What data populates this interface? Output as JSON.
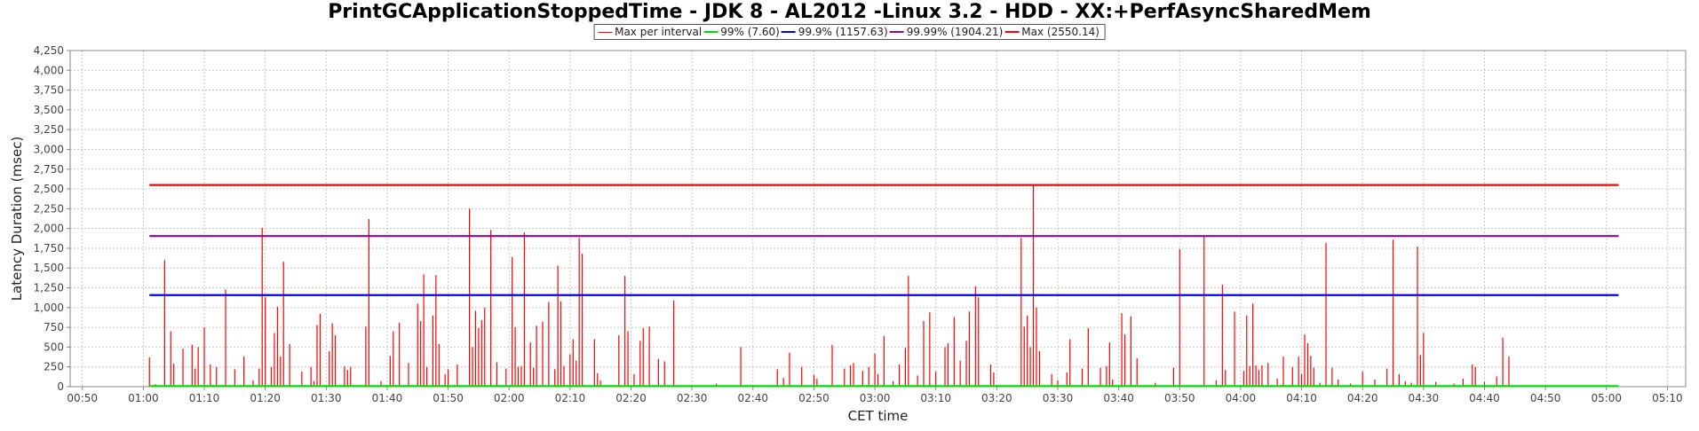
{
  "chart_data": {
    "type": "line",
    "title": "PrintGCApplicationStoppedTime - JDK 8 - AL2012 -Linux 3.2 - HDD - XX:+PerfAsyncSharedMem",
    "xlabel": "CET time",
    "ylabel": "Latency Duration (msec)",
    "ylim": [
      0,
      4250
    ],
    "yticks": [
      0,
      250,
      500,
      750,
      1000,
      1250,
      1500,
      1750,
      2000,
      2250,
      2500,
      2750,
      3000,
      3250,
      3500,
      3750,
      4000,
      4250
    ],
    "ytick_labels": [
      "0",
      "250",
      "500",
      "750",
      "1,000",
      "1,250",
      "1,500",
      "1,750",
      "2,000",
      "2,250",
      "2,500",
      "2,750",
      "3,000",
      "3,250",
      "3,500",
      "3,750",
      "4,000",
      "4,250"
    ],
    "xlim": [
      "00:48",
      "05:13"
    ],
    "xtick_labels": [
      "00:50",
      "01:00",
      "01:10",
      "01:20",
      "01:30",
      "01:40",
      "01:50",
      "02:00",
      "02:10",
      "02:20",
      "02:30",
      "02:40",
      "02:50",
      "03:00",
      "03:10",
      "03:20",
      "03:30",
      "03:40",
      "03:50",
      "04:00",
      "04:10",
      "04:20",
      "04:30",
      "04:40",
      "04:50",
      "05:00",
      "05:10"
    ],
    "grid": true,
    "legend_position": "top-center",
    "legend": [
      {
        "label": "Max per interval",
        "color": "#ff0000"
      },
      {
        "label": "99% (7.60)",
        "color": "#00dd00"
      },
      {
        "label": "99.9% (1157.63)",
        "color": "#0000ff"
      },
      {
        "label": "99.99% (1904.21)",
        "color": "#990099"
      },
      {
        "label": "Max (2550.14)",
        "color": "#ff0000"
      }
    ],
    "series": [
      {
        "name": "Max per interval",
        "color": "#ff0000",
        "type": "spikes",
        "points": [
          [
            "01:01:00",
            370
          ],
          [
            "01:02:00",
            30
          ],
          [
            "01:03:30",
            1600
          ],
          [
            "01:04:30",
            700
          ],
          [
            "01:05:00",
            290
          ],
          [
            "01:06:30",
            480
          ],
          [
            "01:08:00",
            530
          ],
          [
            "01:08:30",
            230
          ],
          [
            "01:09:00",
            500
          ],
          [
            "01:10:00",
            750
          ],
          [
            "01:11:00",
            280
          ],
          [
            "01:12:00",
            250
          ],
          [
            "01:13:30",
            1230
          ],
          [
            "01:15:00",
            220
          ],
          [
            "01:16:30",
            380
          ],
          [
            "01:18:00",
            80
          ],
          [
            "01:19:00",
            230
          ],
          [
            "01:19:30",
            2010
          ],
          [
            "01:20:00",
            1130
          ],
          [
            "01:21:00",
            250
          ],
          [
            "01:21:30",
            680
          ],
          [
            "01:22:00",
            1010
          ],
          [
            "01:22:30",
            380
          ],
          [
            "01:23:00",
            1580
          ],
          [
            "01:24:00",
            540
          ],
          [
            "01:26:00",
            190
          ],
          [
            "01:27:30",
            250
          ],
          [
            "01:28:00",
            70
          ],
          [
            "01:28:30",
            780
          ],
          [
            "01:29:00",
            920
          ],
          [
            "01:30:30",
            450
          ],
          [
            "01:31:00",
            800
          ],
          [
            "01:31:30",
            650
          ],
          [
            "01:33:00",
            260
          ],
          [
            "01:33:30",
            210
          ],
          [
            "01:34:00",
            250
          ],
          [
            "01:36:30",
            760
          ],
          [
            "01:37:00",
            2120
          ],
          [
            "01:39:00",
            70
          ],
          [
            "01:40:30",
            390
          ],
          [
            "01:41:00",
            700
          ],
          [
            "01:42:00",
            810
          ],
          [
            "01:43:30",
            300
          ],
          [
            "01:45:00",
            1050
          ],
          [
            "01:45:30",
            830
          ],
          [
            "01:46:00",
            1420
          ],
          [
            "01:46:30",
            250
          ],
          [
            "01:47:30",
            900
          ],
          [
            "01:48:00",
            1410
          ],
          [
            "01:48:30",
            540
          ],
          [
            "01:49:30",
            160
          ],
          [
            "01:50:00",
            220
          ],
          [
            "01:51:30",
            280
          ],
          [
            "01:53:30",
            2250
          ],
          [
            "01:54:00",
            500
          ],
          [
            "01:54:30",
            960
          ],
          [
            "01:55:00",
            740
          ],
          [
            "01:55:30",
            840
          ],
          [
            "01:56:00",
            1000
          ],
          [
            "01:57:00",
            1980
          ],
          [
            "01:58:00",
            310
          ],
          [
            "01:59:30",
            230
          ],
          [
            "02:00:30",
            1640
          ],
          [
            "02:01:00",
            750
          ],
          [
            "02:01:30",
            250
          ],
          [
            "02:02:00",
            260
          ],
          [
            "02:02:30",
            1950
          ],
          [
            "02:03:30",
            560
          ],
          [
            "02:04:00",
            240
          ],
          [
            "02:04:30",
            770
          ],
          [
            "02:05:30",
            820
          ],
          [
            "02:06:30",
            1070
          ],
          [
            "02:07:30",
            220
          ],
          [
            "02:08:00",
            1530
          ],
          [
            "02:08:30",
            1080
          ],
          [
            "02:09:00",
            260
          ],
          [
            "02:10:00",
            410
          ],
          [
            "02:10:30",
            600
          ],
          [
            "02:11:00",
            330
          ],
          [
            "02:11:30",
            1880
          ],
          [
            "02:12:00",
            1680
          ],
          [
            "02:14:00",
            600
          ],
          [
            "02:14:30",
            170
          ],
          [
            "02:15:00",
            80
          ],
          [
            "02:18:00",
            650
          ],
          [
            "02:19:00",
            1400
          ],
          [
            "02:19:30",
            700
          ],
          [
            "02:20:30",
            160
          ],
          [
            "02:21:30",
            580
          ],
          [
            "02:22:00",
            740
          ],
          [
            "02:23:00",
            760
          ],
          [
            "02:24:30",
            350
          ],
          [
            "02:25:30",
            320
          ],
          [
            "02:27:00",
            1090
          ],
          [
            "02:34:00",
            40
          ],
          [
            "02:38:00",
            500
          ],
          [
            "02:44:00",
            220
          ],
          [
            "02:45:00",
            110
          ],
          [
            "02:46:00",
            430
          ],
          [
            "02:48:00",
            250
          ],
          [
            "02:50:00",
            150
          ],
          [
            "02:50:30",
            100
          ],
          [
            "02:53:00",
            530
          ],
          [
            "02:55:00",
            230
          ],
          [
            "02:56:00",
            270
          ],
          [
            "02:56:30",
            300
          ],
          [
            "02:58:00",
            200
          ],
          [
            "02:59:00",
            250
          ],
          [
            "03:00:00",
            420
          ],
          [
            "03:00:30",
            160
          ],
          [
            "03:01:30",
            640
          ],
          [
            "03:03:00",
            70
          ],
          [
            "03:04:00",
            280
          ],
          [
            "03:05:00",
            490
          ],
          [
            "03:05:30",
            1400
          ],
          [
            "03:07:00",
            140
          ],
          [
            "03:08:00",
            830
          ],
          [
            "03:09:00",
            940
          ],
          [
            "03:10:00",
            190
          ],
          [
            "03:11:30",
            500
          ],
          [
            "03:12:00",
            550
          ],
          [
            "03:13:00",
            880
          ],
          [
            "03:14:00",
            330
          ],
          [
            "03:15:00",
            580
          ],
          [
            "03:15:30",
            950
          ],
          [
            "03:16:30",
            1270
          ],
          [
            "03:17:00",
            1130
          ],
          [
            "03:19:00",
            280
          ],
          [
            "03:19:30",
            180
          ],
          [
            "03:24:00",
            1880
          ],
          [
            "03:24:30",
            760
          ],
          [
            "03:25:00",
            900
          ],
          [
            "03:25:30",
            500
          ],
          [
            "03:26:00",
            2550
          ],
          [
            "03:26:30",
            1000
          ],
          [
            "03:27:00",
            450
          ],
          [
            "03:29:00",
            160
          ],
          [
            "03:30:00",
            80
          ],
          [
            "03:31:30",
            180
          ],
          [
            "03:32:00",
            600
          ],
          [
            "03:34:00",
            230
          ],
          [
            "03:35:00",
            740
          ],
          [
            "03:37:00",
            240
          ],
          [
            "03:38:00",
            260
          ],
          [
            "03:38:30",
            560
          ],
          [
            "03:39:00",
            90
          ],
          [
            "03:40:30",
            930
          ],
          [
            "03:41:00",
            660
          ],
          [
            "03:42:00",
            890
          ],
          [
            "03:43:00",
            360
          ],
          [
            "03:46:00",
            50
          ],
          [
            "03:49:00",
            240
          ],
          [
            "03:50:00",
            1740
          ],
          [
            "03:54:00",
            1900
          ],
          [
            "03:56:00",
            80
          ],
          [
            "03:57:00",
            1290
          ],
          [
            "03:57:30",
            210
          ],
          [
            "03:59:00",
            950
          ],
          [
            "04:00:30",
            200
          ],
          [
            "04:01:00",
            900
          ],
          [
            "04:01:30",
            260
          ],
          [
            "04:02:00",
            1050
          ],
          [
            "04:02:30",
            270
          ],
          [
            "04:03:00",
            210
          ],
          [
            "04:03:30",
            270
          ],
          [
            "04:04:30",
            300
          ],
          [
            "04:06:00",
            100
          ],
          [
            "04:07:00",
            380
          ],
          [
            "04:08:30",
            250
          ],
          [
            "04:09:30",
            380
          ],
          [
            "04:10:00",
            160
          ],
          [
            "04:10:30",
            660
          ],
          [
            "04:11:00",
            550
          ],
          [
            "04:11:30",
            390
          ],
          [
            "04:12:00",
            240
          ],
          [
            "04:13:00",
            50
          ],
          [
            "04:14:00",
            1820
          ],
          [
            "04:15:00",
            240
          ],
          [
            "04:16:00",
            90
          ],
          [
            "04:18:00",
            40
          ],
          [
            "04:20:00",
            190
          ],
          [
            "04:22:00",
            90
          ],
          [
            "04:24:00",
            230
          ],
          [
            "04:25:00",
            1860
          ],
          [
            "04:26:00",
            160
          ],
          [
            "04:27:00",
            70
          ],
          [
            "04:28:00",
            50
          ],
          [
            "04:29:00",
            1770
          ],
          [
            "04:29:30",
            400
          ],
          [
            "04:30:00",
            680
          ],
          [
            "04:32:00",
            60
          ],
          [
            "04:35:00",
            40
          ],
          [
            "04:36:30",
            100
          ],
          [
            "04:38:00",
            280
          ],
          [
            "04:38:30",
            250
          ],
          [
            "04:40:00",
            60
          ],
          [
            "04:42:00",
            130
          ],
          [
            "04:43:00",
            620
          ],
          [
            "04:44:00",
            380
          ]
        ]
      },
      {
        "name": "99% (7.60)",
        "color": "#00dd00",
        "type": "hline",
        "value": 7.6,
        "x_range": [
          "01:01:00",
          "05:02:00"
        ]
      },
      {
        "name": "99.9% (1157.63)",
        "color": "#0000ff",
        "type": "hline",
        "value": 1157.63,
        "x_range": [
          "01:01:00",
          "05:02:00"
        ]
      },
      {
        "name": "99.99% (1904.21)",
        "color": "#990099",
        "type": "hline",
        "value": 1904.21,
        "x_range": [
          "01:01:00",
          "05:02:00"
        ]
      },
      {
        "name": "Max (2550.14)",
        "color": "#ff0000",
        "type": "hline",
        "value": 2550.14,
        "x_range": [
          "01:01:00",
          "05:02:00"
        ]
      }
    ]
  }
}
